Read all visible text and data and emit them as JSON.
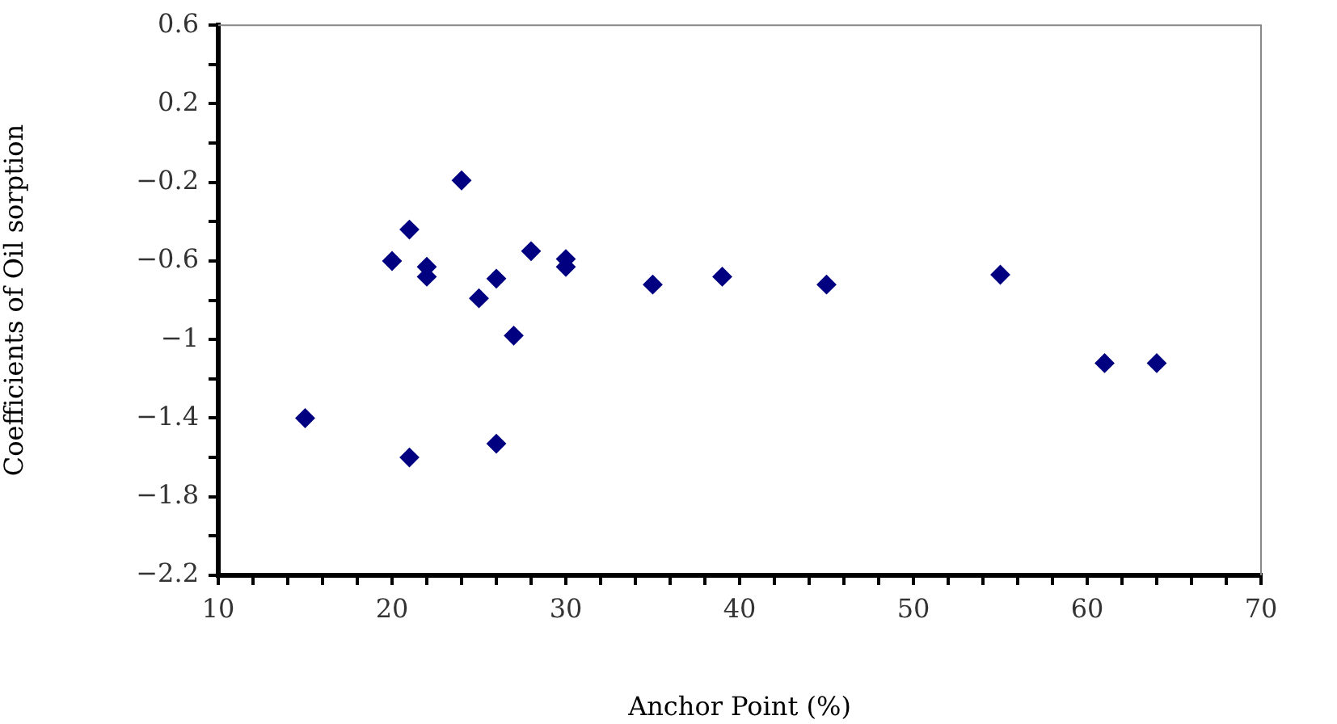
{
  "chart_data": {
    "type": "scatter",
    "xlabel": "Anchor Point (%)",
    "ylabel": "Coefficients of Oil sorption",
    "marker": "diamond",
    "series": [
      {
        "color": "#000080",
        "x": [
          15,
          20,
          21,
          21,
          22,
          22,
          24,
          25,
          26,
          26,
          27,
          28,
          30,
          30,
          35,
          39,
          45,
          55,
          61,
          64
        ],
        "values": [
          -1.4,
          -0.6,
          -0.44,
          -1.6,
          -0.63,
          -0.68,
          -0.19,
          -0.79,
          -0.69,
          -1.53,
          -0.98,
          -0.55,
          -0.59,
          -0.63,
          -0.72,
          -0.68,
          -0.72,
          -0.67,
          -1.12,
          -1.12
        ]
      }
    ],
    "xlim": [
      10,
      70
    ],
    "xticks": [
      10,
      {
        "value": 12,
        "label": null
      },
      {
        "value": 14,
        "label": null
      },
      {
        "value": 16,
        "label": null
      },
      {
        "value": 18,
        "label": null
      },
      20,
      {
        "value": 22,
        "label": null
      },
      {
        "value": 24,
        "label": null
      },
      {
        "value": 26,
        "label": null
      },
      {
        "value": 28,
        "label": null
      },
      30,
      {
        "value": 32,
        "label": null
      },
      {
        "value": 34,
        "label": null
      },
      {
        "value": 36,
        "label": null
      },
      {
        "value": 38,
        "label": null
      },
      40,
      {
        "value": 42,
        "label": null
      },
      {
        "value": 44,
        "label": null
      },
      {
        "value": 46,
        "label": null
      },
      {
        "value": 48,
        "label": null
      },
      50,
      {
        "value": 52,
        "label": null
      },
      {
        "value": 54,
        "label": null
      },
      {
        "value": 56,
        "label": null
      },
      {
        "value": 58,
        "label": null
      },
      60,
      {
        "value": 62,
        "label": null
      },
      {
        "value": 64,
        "label": null
      },
      {
        "value": 66,
        "label": null
      },
      {
        "value": 68,
        "label": null
      },
      70
    ],
    "ylim": [
      -2.2,
      0.6
    ],
    "yticks": [
      -2.2,
      {
        "value": -2.0,
        "label": null
      },
      -1.8,
      {
        "value": -1.6,
        "label": null
      },
      -1.4,
      {
        "value": -1.2,
        "label": null
      },
      -1,
      {
        "value": -0.8,
        "label": null
      },
      -0.6,
      {
        "value": -0.4,
        "label": null
      },
      -0.2,
      {
        "value": 0,
        "label": null
      },
      0.2,
      {
        "value": 0.4,
        "label": null
      },
      0.6
    ]
  }
}
